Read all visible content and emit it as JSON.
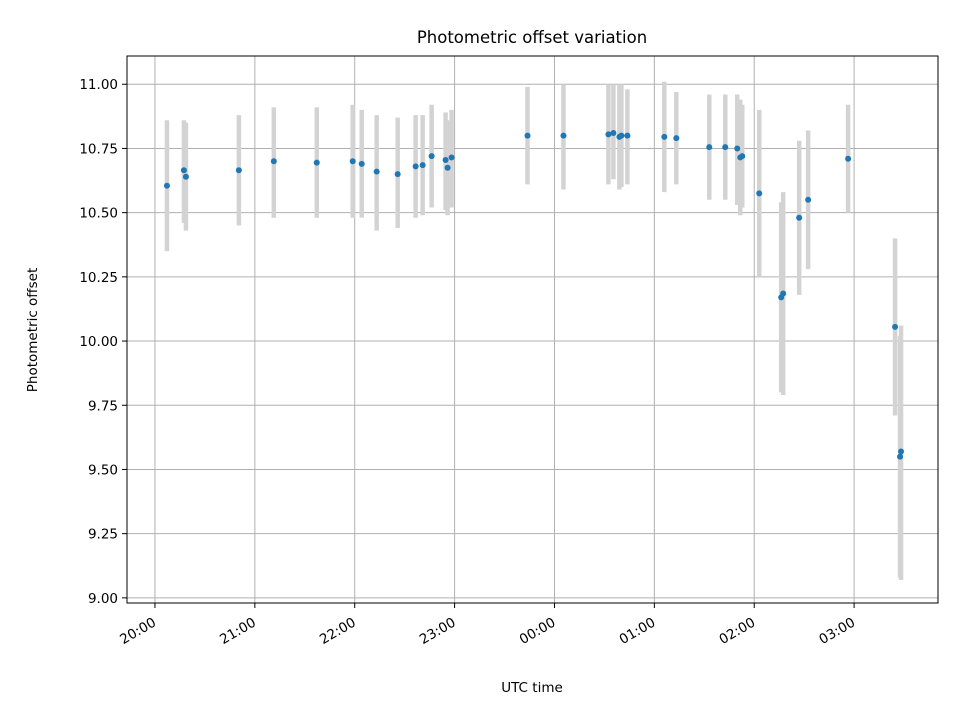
{
  "chart_data": {
    "type": "scatter",
    "title": "Photometric offset variation",
    "xlabel": "UTC time",
    "ylabel": "Photometric offset",
    "x_unit": "hours after 20:00 UTC (axis shows clock time)",
    "xlim": [
      -0.28,
      7.84
    ],
    "ylim": [
      8.98,
      11.11
    ],
    "grid": true,
    "x_ticks": [
      {
        "v": 0,
        "label": "20:00"
      },
      {
        "v": 1,
        "label": "21:00"
      },
      {
        "v": 2,
        "label": "22:00"
      },
      {
        "v": 3,
        "label": "23:00"
      },
      {
        "v": 4,
        "label": "00:00"
      },
      {
        "v": 5,
        "label": "01:00"
      },
      {
        "v": 6,
        "label": "02:00"
      },
      {
        "v": 7,
        "label": "03:00"
      }
    ],
    "y_ticks": [
      {
        "v": 9.0,
        "label": "9.00"
      },
      {
        "v": 9.25,
        "label": "9.25"
      },
      {
        "v": 9.5,
        "label": "9.50"
      },
      {
        "v": 9.75,
        "label": "9.75"
      },
      {
        "v": 10.0,
        "label": "10.00"
      },
      {
        "v": 10.25,
        "label": "10.25"
      },
      {
        "v": 10.5,
        "label": "10.50"
      },
      {
        "v": 10.75,
        "label": "10.75"
      },
      {
        "v": 11.0,
        "label": "11.00"
      }
    ],
    "marker_color": "#1f77b4",
    "errorbar_color": "#d3d3d3",
    "points": [
      {
        "x": 0.12,
        "y": 10.605,
        "lo": 10.35,
        "hi": 10.86
      },
      {
        "x": 0.29,
        "y": 10.665,
        "lo": 10.46,
        "hi": 10.86
      },
      {
        "x": 0.31,
        "y": 10.64,
        "lo": 10.43,
        "hi": 10.85
      },
      {
        "x": 0.84,
        "y": 10.665,
        "lo": 10.45,
        "hi": 10.88
      },
      {
        "x": 1.19,
        "y": 10.7,
        "lo": 10.48,
        "hi": 10.91
      },
      {
        "x": 1.62,
        "y": 10.695,
        "lo": 10.48,
        "hi": 10.91
      },
      {
        "x": 1.98,
        "y": 10.7,
        "lo": 10.48,
        "hi": 10.92
      },
      {
        "x": 2.07,
        "y": 10.69,
        "lo": 10.48,
        "hi": 10.9
      },
      {
        "x": 2.22,
        "y": 10.66,
        "lo": 10.43,
        "hi": 10.88
      },
      {
        "x": 2.43,
        "y": 10.65,
        "lo": 10.44,
        "hi": 10.87
      },
      {
        "x": 2.61,
        "y": 10.68,
        "lo": 10.48,
        "hi": 10.88
      },
      {
        "x": 2.68,
        "y": 10.685,
        "lo": 10.49,
        "hi": 10.88
      },
      {
        "x": 2.77,
        "y": 10.72,
        "lo": 10.52,
        "hi": 10.92
      },
      {
        "x": 2.91,
        "y": 10.705,
        "lo": 10.51,
        "hi": 10.89
      },
      {
        "x": 2.93,
        "y": 10.675,
        "lo": 10.49,
        "hi": 10.86
      },
      {
        "x": 2.97,
        "y": 10.715,
        "lo": 10.52,
        "hi": 10.9
      },
      {
        "x": 3.73,
        "y": 10.8,
        "lo": 10.61,
        "hi": 10.99
      },
      {
        "x": 4.09,
        "y": 10.8,
        "lo": 10.59,
        "hi": 11.0
      },
      {
        "x": 4.54,
        "y": 10.805,
        "lo": 10.61,
        "hi": 11.0
      },
      {
        "x": 4.59,
        "y": 10.81,
        "lo": 10.63,
        "hi": 11.0
      },
      {
        "x": 4.65,
        "y": 10.795,
        "lo": 10.59,
        "hi": 11.0
      },
      {
        "x": 4.67,
        "y": 10.8,
        "lo": 10.6,
        "hi": 11.0
      },
      {
        "x": 4.73,
        "y": 10.8,
        "lo": 10.61,
        "hi": 10.98
      },
      {
        "x": 5.1,
        "y": 10.795,
        "lo": 10.58,
        "hi": 11.01
      },
      {
        "x": 5.22,
        "y": 10.79,
        "lo": 10.61,
        "hi": 10.97
      },
      {
        "x": 5.55,
        "y": 10.755,
        "lo": 10.55,
        "hi": 10.96
      },
      {
        "x": 5.71,
        "y": 10.755,
        "lo": 10.55,
        "hi": 10.96
      },
      {
        "x": 5.83,
        "y": 10.75,
        "lo": 10.53,
        "hi": 10.96
      },
      {
        "x": 5.86,
        "y": 10.715,
        "lo": 10.49,
        "hi": 10.94
      },
      {
        "x": 5.88,
        "y": 10.72,
        "lo": 10.52,
        "hi": 10.92
      },
      {
        "x": 6.05,
        "y": 10.575,
        "lo": 10.25,
        "hi": 10.9
      },
      {
        "x": 6.27,
        "y": 10.17,
        "lo": 9.8,
        "hi": 10.54
      },
      {
        "x": 6.29,
        "y": 10.185,
        "lo": 9.79,
        "hi": 10.58
      },
      {
        "x": 6.45,
        "y": 10.48,
        "lo": 10.18,
        "hi": 10.78
      },
      {
        "x": 6.54,
        "y": 10.55,
        "lo": 10.28,
        "hi": 10.82
      },
      {
        "x": 6.94,
        "y": 10.71,
        "lo": 10.5,
        "hi": 10.92
      },
      {
        "x": 7.41,
        "y": 10.055,
        "lo": 9.71,
        "hi": 10.4
      },
      {
        "x": 7.47,
        "y": 9.57,
        "lo": 9.07,
        "hi": 10.06
      },
      {
        "x": 7.46,
        "y": 9.55,
        "lo": 9.08,
        "hi": 10.02
      }
    ]
  }
}
